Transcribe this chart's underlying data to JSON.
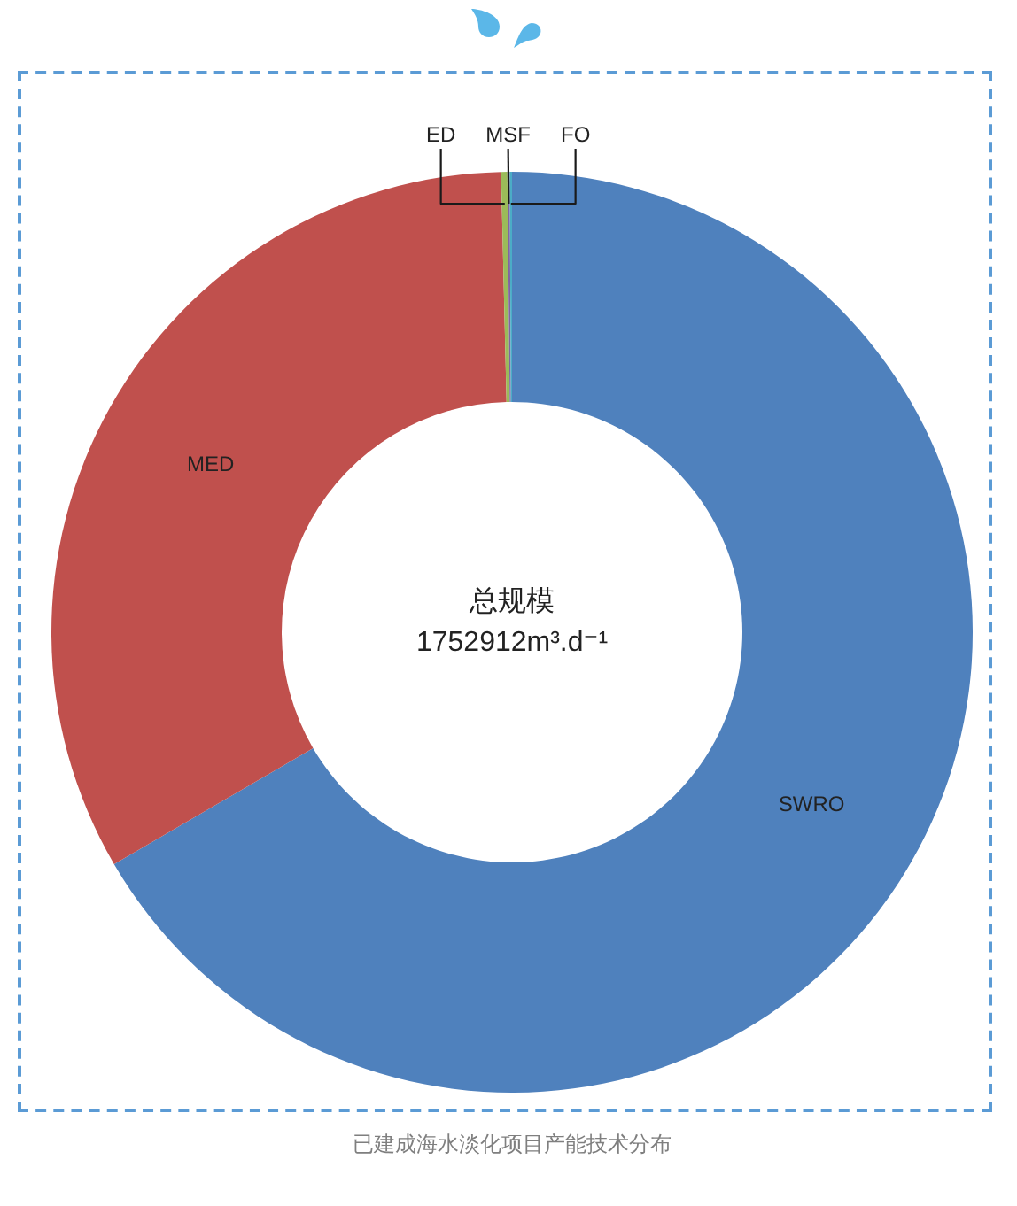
{
  "chart_data": {
    "type": "donut",
    "title": "已建成海水淡化项目产能技术分布",
    "annotations": [
      "总规模",
      "1752912m³.d⁻¹"
    ],
    "categories": [
      "SWRO",
      "MED",
      "ED",
      "MSF",
      "FO"
    ],
    "values": [
      66.6,
      33.02,
      0.22,
      0.08,
      0.08
    ],
    "colors": [
      "#4f81bd",
      "#c0504d",
      "#9bbb59",
      "#8064a2",
      "#4bacc6"
    ]
  }
}
